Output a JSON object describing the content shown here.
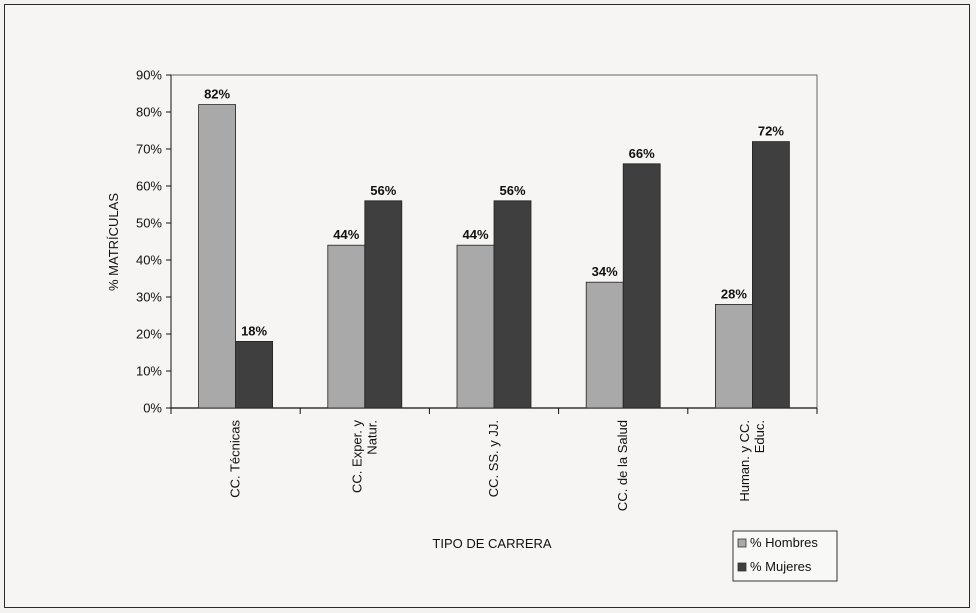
{
  "chart_data": {
    "type": "bar",
    "categories": [
      [
        "CC. Técnicas"
      ],
      [
        "CC. Exper. y",
        "Natur."
      ],
      [
        "CC. SS. y JJ."
      ],
      [
        "CC. de la Salud"
      ],
      [
        "Human. y CC.",
        "Educ."
      ]
    ],
    "series": [
      {
        "name": "% Hombres",
        "values": [
          82,
          44,
          44,
          34,
          28
        ],
        "labels": [
          "82%",
          "44%",
          "44%",
          "34%",
          "28%"
        ],
        "color": "#a9a9a9"
      },
      {
        "name": "% Mujeres",
        "values": [
          18,
          56,
          56,
          66,
          72
        ],
        "labels": [
          "18%",
          "56%",
          "56%",
          "66%",
          "72%"
        ],
        "color": "#3f3f3f"
      }
    ],
    "xlabel": "TIPO DE CARRERA",
    "ylabel": "% MATRÍCULAS",
    "ylim": [
      0,
      90
    ],
    "yticks": [
      0,
      10,
      20,
      30,
      40,
      50,
      60,
      70,
      80,
      90
    ],
    "ytick_labels": [
      "0%",
      "10%",
      "20%",
      "30%",
      "40%",
      "50%",
      "60%",
      "70%",
      "80%",
      "90%"
    ],
    "grid": false,
    "legend_position": "bottom-right"
  }
}
